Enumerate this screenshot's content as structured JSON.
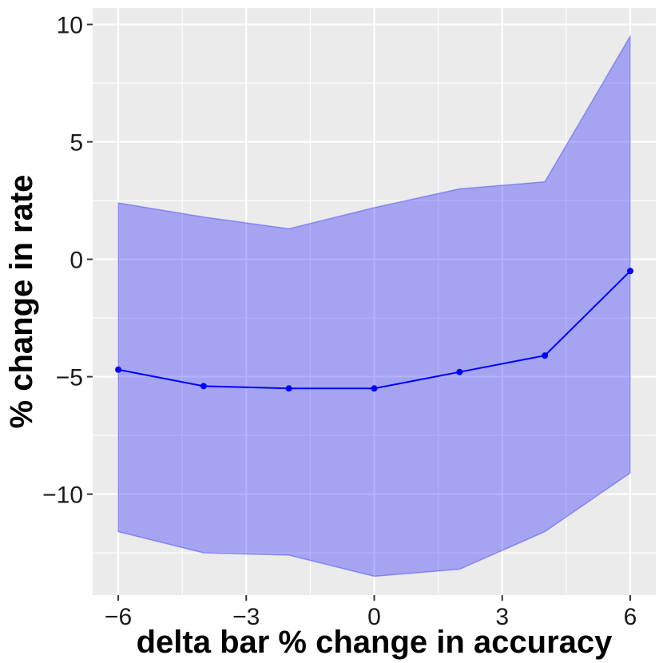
{
  "chart_data": {
    "type": "line",
    "title": "",
    "xlabel": "delta bar % change in accuracy",
    "ylabel": "% change in rate",
    "xlim": [
      -6.6,
      6.6
    ],
    "ylim": [
      -14.3,
      10.7
    ],
    "x_ticks": [
      -6,
      -3,
      0,
      3,
      6
    ],
    "x_tick_labels": [
      "−6",
      "−3",
      "0",
      "3",
      "6"
    ],
    "y_ticks": [
      -10,
      -5,
      0,
      5,
      10
    ],
    "y_tick_labels": [
      "−10",
      "−5",
      "0",
      "5",
      "10"
    ],
    "grid": true,
    "series": [
      {
        "x": [
          -6,
          -4,
          -2,
          0,
          2,
          4,
          6
        ],
        "y": [
          -4.7,
          -5.4,
          -5.5,
          -5.5,
          -4.8,
          -4.1,
          -0.5
        ],
        "lower": [
          -11.6,
          -12.5,
          -12.6,
          -13.5,
          -13.2,
          -11.6,
          -9.1
        ],
        "upper": [
          2.4,
          1.8,
          1.3,
          2.2,
          3.0,
          3.3,
          9.5
        ]
      }
    ],
    "colors": {
      "line": "#0000ff",
      "ribbon": "#8f8fef",
      "panel": "#ebebeb",
      "grid": "#ffffff"
    }
  }
}
